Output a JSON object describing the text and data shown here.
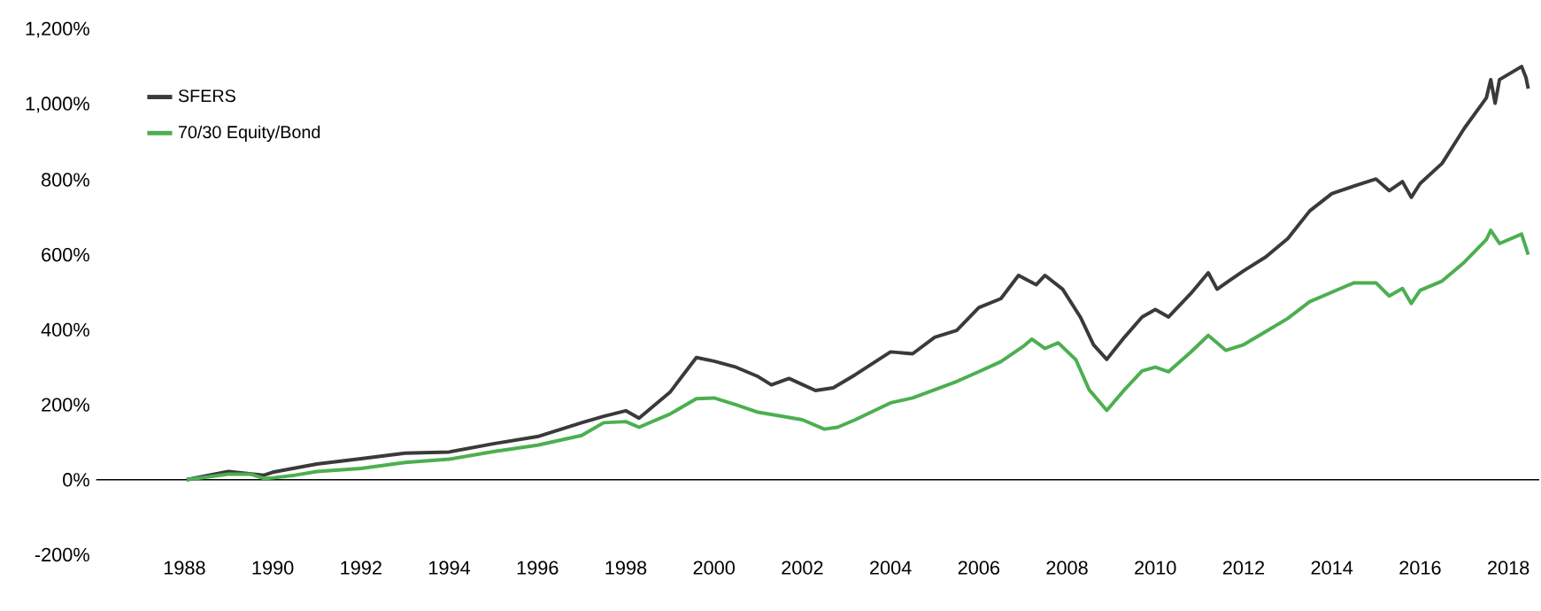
{
  "chart_data": {
    "type": "line",
    "xlim": [
      1986.0,
      2018.7
    ],
    "ylim": [
      -200,
      1200
    ],
    "xticks": [
      1988,
      1990,
      1992,
      1994,
      1996,
      1998,
      2000,
      2002,
      2004,
      2006,
      2008,
      2010,
      2012,
      2014,
      2016,
      2018
    ],
    "yticks": [
      {
        "value": -200,
        "label": "-200%"
      },
      {
        "value": 0,
        "label": "0%"
      },
      {
        "value": 200,
        "label": "200%"
      },
      {
        "value": 400,
        "label": "400%"
      },
      {
        "value": 600,
        "label": "600%"
      },
      {
        "value": 800,
        "label": "800%"
      },
      {
        "value": 1000,
        "label": "1,000%"
      },
      {
        "value": 1200,
        "label": "1,200%"
      }
    ],
    "grid": false,
    "legend": "top left",
    "marker": "none",
    "line_style": "solid",
    "ref_lines": [
      {
        "axis": "y",
        "value": 0,
        "color": "#000000"
      }
    ],
    "series": [
      {
        "name": "SFERS",
        "color": "#3a3a3a",
        "x": [
          1988.05,
          1989,
          1989.8,
          1990,
          1991,
          1992,
          1993,
          1994,
          1995,
          1996,
          1997,
          1997.5,
          1998,
          1998.3,
          1999,
          1999.6,
          2000,
          2000.5,
          2001,
          2001.3,
          2001.7,
          2002.3,
          2002.7,
          2003.2,
          2004,
          2004.5,
          2005,
          2005.5,
          2006,
          2006.5,
          2006.9,
          2007.3,
          2007.5,
          2007.9,
          2008.3,
          2008.6,
          2008.9,
          2009.3,
          2009.7,
          2010,
          2010.3,
          2010.8,
          2011.2,
          2011.4,
          2011.7,
          2012,
          2012.5,
          2013,
          2013.5,
          2014,
          2014.5,
          2015,
          2015.3,
          2015.6,
          2015.8,
          2016,
          2016.5,
          2017,
          2017.5,
          2017.6,
          2017.7,
          2017.8,
          2018.3,
          2018.4,
          2018.45
        ],
        "values": [
          0,
          22,
          12,
          20,
          42,
          56,
          71,
          74,
          96,
          115,
          152,
          169,
          184,
          164,
          233,
          326,
          316,
          300,
          275,
          253,
          270,
          238,
          245,
          280,
          341,
          336,
          380,
          398,
          459,
          483,
          545,
          520,
          545,
          508,
          434,
          360,
          321,
          380,
          434,
          454,
          434,
          496,
          552,
          508,
          533,
          557,
          594,
          643,
          717,
          763,
          783,
          802,
          771,
          795,
          753,
          790,
          844,
          937,
          1018,
          1067,
          1004,
          1067,
          1102,
          1072,
          1043
        ]
      },
      {
        "name": "70/30 Equity/Bond",
        "color": "#4caf50",
        "x": [
          1988.05,
          1989,
          1989.5,
          1989.8,
          1990,
          1990.5,
          1991,
          1992,
          1993,
          1994,
          1995,
          1996,
          1997,
          1997.5,
          1998,
          1998.3,
          1999,
          1999.6,
          2000,
          2000.5,
          2001,
          2001.5,
          2002,
          2002.5,
          2002.8,
          2003.2,
          2004,
          2004.5,
          2005,
          2005.5,
          2006,
          2006.5,
          2007,
          2007.2,
          2007.5,
          2007.8,
          2008.2,
          2008.5,
          2008.9,
          2009.3,
          2009.7,
          2010,
          2010.3,
          2010.8,
          2011.2,
          2011.6,
          2012,
          2012.5,
          2013,
          2013.5,
          2014,
          2014.5,
          2015,
          2015.3,
          2015.6,
          2015.8,
          2016,
          2016.5,
          2017,
          2017.5,
          2017.6,
          2017.8,
          2018.3,
          2018.45
        ],
        "values": [
          0,
          15,
          15,
          3,
          5,
          12,
          22,
          30,
          46,
          55,
          75,
          92,
          118,
          152,
          155,
          140,
          175,
          216,
          218,
          200,
          180,
          170,
          160,
          135,
          140,
          160,
          205,
          218,
          240,
          262,
          288,
          315,
          355,
          375,
          350,
          365,
          320,
          240,
          185,
          240,
          290,
          300,
          288,
          340,
          385,
          345,
          360,
          395,
          430,
          475,
          500,
          525,
          525,
          490,
          510,
          470,
          505,
          530,
          580,
          640,
          665,
          630,
          655,
          600
        ]
      }
    ]
  }
}
